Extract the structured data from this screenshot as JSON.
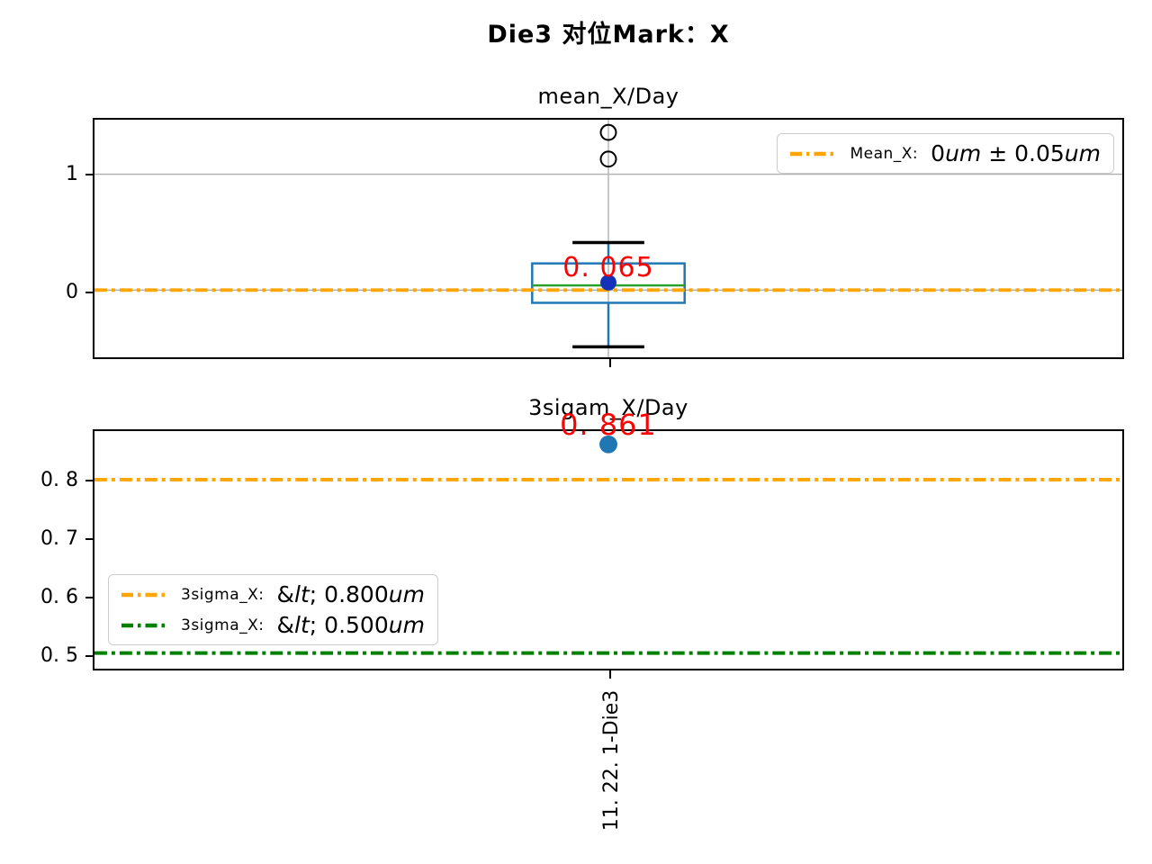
{
  "figure": {
    "title": "Die3 对位Mark：X",
    "background": "#ffffff"
  },
  "colors": {
    "box_blue": "#1f77b4",
    "median_green": "#2ca02c",
    "mean_dot_blue": "#1432b8",
    "scatter_blue": "#1f77b4",
    "annotation_red": "#ff0000",
    "grid_gray": "#b0b0b0",
    "axis_black": "#000000",
    "spec_orange": "#FFA500",
    "spec_green": "#008000"
  },
  "x_tick_display": "11. 22. 1-Die3",
  "chart_data": [
    {
      "type": "boxplot",
      "title": "mean_X/Day",
      "categories": [
        "11.22.1-Die3"
      ],
      "ylim": [
        -0.58,
        1.47
      ],
      "yticks": [
        0,
        1
      ],
      "ytick_labels": [
        "0",
        "1"
      ],
      "grid": true,
      "box": {
        "mean": 0.065,
        "median": 0.04,
        "q1": -0.11,
        "q3": 0.23,
        "whisker_low": -0.49,
        "whisker_high": 0.41,
        "outliers": [
          1.13,
          1.36
        ]
      },
      "spec_lines": [
        {
          "y": 0,
          "color": "#FFA500",
          "style": "dashdot"
        }
      ],
      "annotation": {
        "text": "0. 065",
        "value": 0.065,
        "color": "#ff0000"
      },
      "legend": {
        "position": "upper right",
        "entries": [
          {
            "prefix": "Mean_X:",
            "math": "0um ± 0.05um",
            "color": "#FFA500",
            "style": "dashdot"
          }
        ]
      }
    },
    {
      "type": "scatter",
      "title": "3sigam_X/Day",
      "categories": [
        "11.22.1-Die3"
      ],
      "ylim": [
        0.473,
        0.884
      ],
      "yticks": [
        0.5,
        0.6,
        0.7,
        0.8
      ],
      "ytick_labels": [
        "0. 5",
        "0. 6",
        "0. 7",
        "0. 8"
      ],
      "grid": false,
      "points": [
        {
          "x": "11.22.1-Die3",
          "y": 0.861
        }
      ],
      "spec_lines": [
        {
          "y": 0.8,
          "color": "#FFA500",
          "style": "dashdot"
        },
        {
          "y": 0.5,
          "color": "#008000",
          "style": "dashdot"
        }
      ],
      "annotation": {
        "text": "0. 861",
        "value": 0.861,
        "color": "#ff0000"
      },
      "legend": {
        "position": "lower left",
        "entries": [
          {
            "prefix": "3sigma_X:",
            "math": "< 0.800um",
            "color": "#FFA500",
            "style": "dashdot"
          },
          {
            "prefix": "3sigma_X:",
            "math": "< 0.500um",
            "color": "#008000",
            "style": "dashdot"
          }
        ]
      }
    }
  ]
}
